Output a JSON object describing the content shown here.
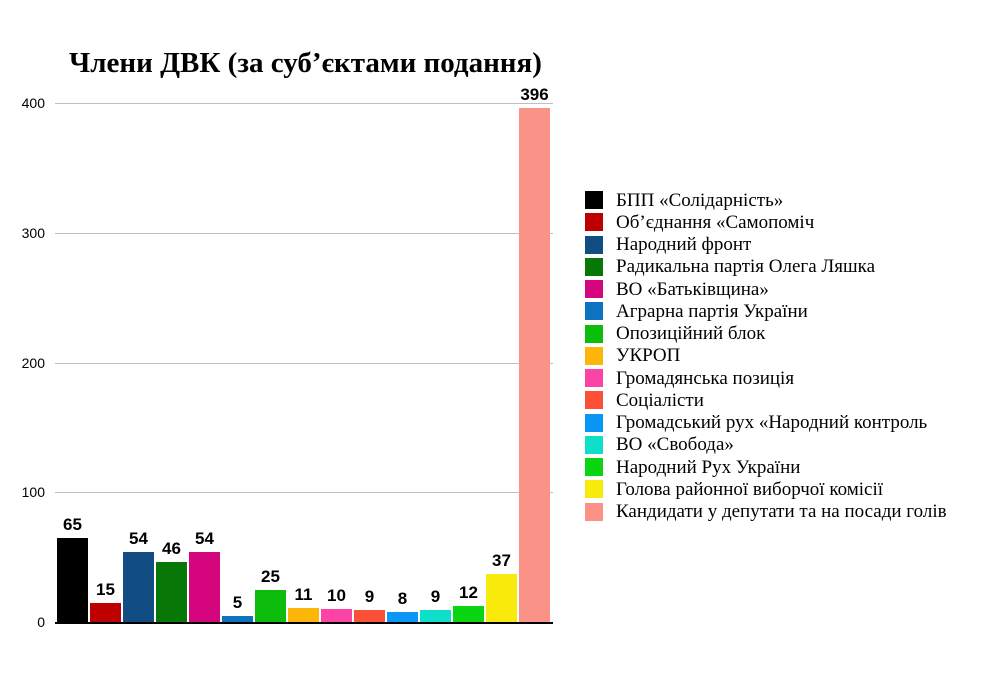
{
  "chart_data": {
    "type": "bar",
    "title": "Члени ДВК (за суб’єктами подання)",
    "categories": [
      "БПП «Солідарність»",
      "Об’єднання «Самопоміч",
      "Народний фронт",
      "Радикальна партія Олега Ляшка",
      "ВО «Батьківщина»",
      "Аграрна партія України",
      "Опозиційний блок",
      "УКРОП",
      "Громадянська позиція",
      "Соціалісти",
      "Громадський рух «Народний контроль",
      "ВО «Свобода»",
      "Народний Рух України",
      "Голова районної виборчої комісії",
      "Кандидати у депутати та на посади голів"
    ],
    "values": [
      65,
      15,
      54,
      46,
      54,
      5,
      25,
      11,
      10,
      9,
      8,
      9,
      12,
      37,
      396
    ],
    "colors": [
      "#000000",
      "#bf0000",
      "#114d82",
      "#077806",
      "#d5067d",
      "#0d72c0",
      "#0cbd0c",
      "#fcb60a",
      "#fc43a6",
      "#fb4f38",
      "#0a96f5",
      "#0edfc8",
      "#0bd512",
      "#f8eb0b",
      "#fb9288"
    ],
    "xlabel": "",
    "ylabel": "",
    "ylim": [
      0,
      400
    ],
    "yticks": [
      0,
      100,
      200,
      300,
      400
    ],
    "grid": true,
    "gridline_color": "#bfbfbf",
    "axis_color": "#000000",
    "legend_position": "right",
    "value_labels": true
  }
}
